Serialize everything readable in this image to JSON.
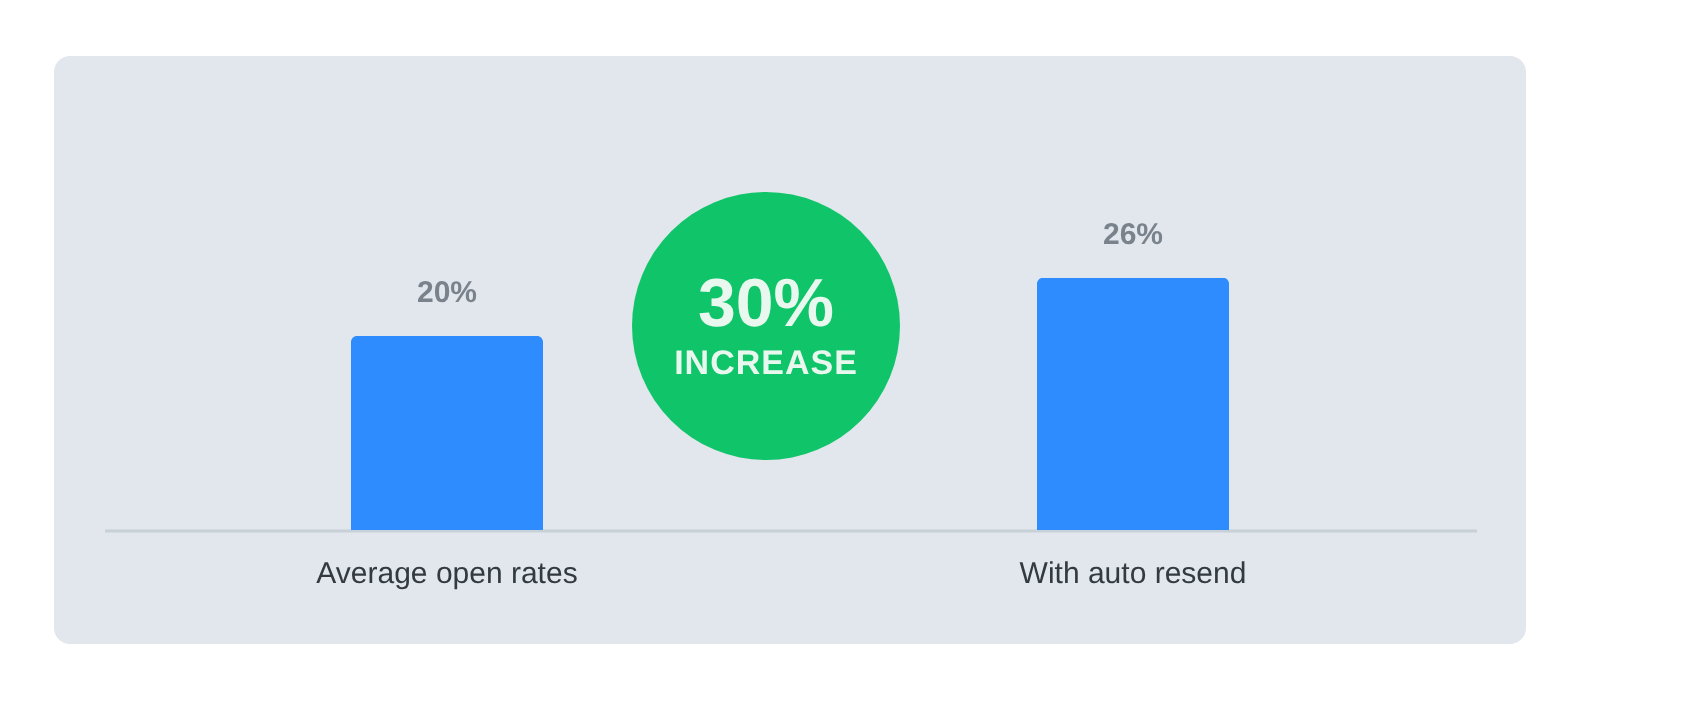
{
  "chart_data": {
    "type": "bar",
    "categories": [
      "Average open rates",
      "With auto resend"
    ],
    "values": [
      20,
      26
    ],
    "value_labels": [
      "20%",
      "26%"
    ],
    "color": "#2e8cff",
    "annotations": [
      "30%",
      "INCREASE"
    ]
  }
}
